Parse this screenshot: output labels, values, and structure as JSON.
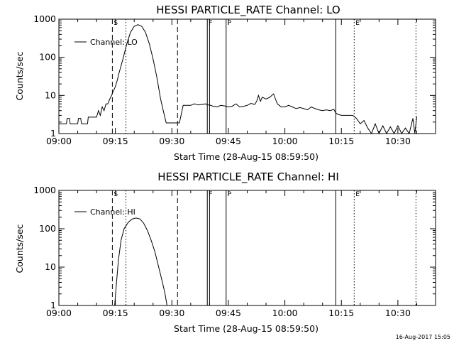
{
  "footer": {
    "timestamp": "16-Aug-2017 15:05"
  },
  "chart_data": [
    {
      "type": "line",
      "title": "HESSI PARTICLE_RATE Channel: LO",
      "xlabel": "Start Time (28-Aug-15 08:59:50)",
      "ylabel": "Counts/sec",
      "log_y": true,
      "ylim": [
        1,
        1000
      ],
      "xlim_minutes": [
        0,
        100
      ],
      "x_ticks": [
        "09:00",
        "09:15",
        "09:30",
        "09:45",
        "10:00",
        "10:15",
        "10:30"
      ],
      "y_ticks": [
        "1",
        "10",
        "100",
        "1000"
      ],
      "legend": {
        "label": "Channel: LO",
        "placement": "top-left"
      },
      "markers": [
        {
          "label": "S",
          "minute": 14.2,
          "style": "dashed"
        },
        {
          "label": "",
          "minute": 17.8,
          "style": "dotted"
        },
        {
          "label": "",
          "minute": 31.5,
          "style": "dashed"
        },
        {
          "label": "F",
          "minute": 39.4,
          "style": "solid"
        },
        {
          "label": "",
          "minute": 40.0,
          "style": "solid"
        },
        {
          "label": "P",
          "minute": 44.4,
          "style": "solid"
        },
        {
          "label": "",
          "minute": 73.5,
          "style": "solid"
        },
        {
          "label": "E",
          "minute": 78.4,
          "style": "dotted"
        },
        {
          "label": "",
          "minute": 94.8,
          "style": "dotted"
        }
      ],
      "series": [
        {
          "name": "Channel: LO",
          "points": [
            [
              0,
              1.8
            ],
            [
              2,
              1.8
            ],
            [
              2.2,
              2.5
            ],
            [
              2.8,
              2.5
            ],
            [
              3,
              1.8
            ],
            [
              5,
              1.8
            ],
            [
              5.2,
              2.5
            ],
            [
              5.8,
              2.5
            ],
            [
              6,
              1.8
            ],
            [
              7.6,
              1.8
            ],
            [
              7.8,
              2.7
            ],
            [
              10,
              2.7
            ],
            [
              10.5,
              4
            ],
            [
              11,
              3
            ],
            [
              11.5,
              5
            ],
            [
              12,
              4
            ],
            [
              12.5,
              6
            ],
            [
              13,
              6
            ],
            [
              13.5,
              8
            ],
            [
              14,
              10
            ],
            [
              14.3,
              12
            ],
            [
              15,
              17
            ],
            [
              15.5,
              25
            ],
            [
              16,
              40
            ],
            [
              17,
              90
            ],
            [
              18,
              220
            ],
            [
              19,
              450
            ],
            [
              20,
              650
            ],
            [
              21,
              720
            ],
            [
              22,
              650
            ],
            [
              23,
              450
            ],
            [
              24,
              230
            ],
            [
              25,
              90
            ],
            [
              26,
              30
            ],
            [
              27,
              8
            ],
            [
              28,
              3
            ],
            [
              28.5,
              1.9
            ],
            [
              30,
              1.9
            ],
            [
              31,
              1.9
            ],
            [
              31.5,
              1.9
            ],
            [
              32,
              1.9
            ],
            [
              33,
              5.5
            ],
            [
              35,
              5.5
            ],
            [
              36,
              6
            ],
            [
              37,
              5.6
            ],
            [
              38,
              5.8
            ],
            [
              39,
              6
            ],
            [
              39.4,
              5.6
            ],
            [
              40,
              5.6
            ],
            [
              41,
              5.2
            ],
            [
              42,
              5
            ],
            [
              43,
              5.5
            ],
            [
              44,
              5.3
            ],
            [
              45,
              5
            ],
            [
              46,
              5.2
            ],
            [
              47,
              6
            ],
            [
              48,
              5
            ],
            [
              49,
              5.2
            ],
            [
              50,
              5.5
            ],
            [
              51,
              6.2
            ],
            [
              52,
              5.8
            ],
            [
              52.5,
              7
            ],
            [
              53,
              10
            ],
            [
              53.5,
              7
            ],
            [
              54,
              9
            ],
            [
              55,
              8
            ],
            [
              56,
              9
            ],
            [
              57,
              11
            ],
            [
              57.5,
              8
            ],
            [
              58,
              6
            ],
            [
              59,
              5
            ],
            [
              60,
              5
            ],
            [
              61,
              5.5
            ],
            [
              62,
              5
            ],
            [
              63,
              4.5
            ],
            [
              64,
              4.8
            ],
            [
              65,
              4.5
            ],
            [
              66,
              4.2
            ],
            [
              67,
              5
            ],
            [
              68,
              4.5
            ],
            [
              69,
              4.2
            ],
            [
              70,
              4
            ],
            [
              71,
              4.2
            ],
            [
              72,
              4
            ],
            [
              73,
              4.3
            ],
            [
              73.5,
              3.5
            ],
            [
              74,
              3.2
            ],
            [
              75,
              3
            ],
            [
              76,
              3
            ],
            [
              77,
              3
            ],
            [
              78,
              3
            ],
            [
              79,
              2.5
            ],
            [
              80,
              1.8
            ],
            [
              81,
              2.2
            ],
            [
              82,
              1.4
            ],
            [
              83,
              1
            ],
            [
              84,
              1.8
            ],
            [
              85,
              1
            ],
            [
              86,
              1.6
            ],
            [
              87,
              1
            ],
            [
              88,
              1.5
            ],
            [
              89,
              1
            ],
            [
              90,
              1.6
            ],
            [
              91,
              1
            ],
            [
              92,
              1.4
            ],
            [
              93,
              1
            ],
            [
              94,
              2.5
            ],
            [
              94.5,
              1
            ],
            [
              95,
              2.8
            ]
          ]
        }
      ]
    },
    {
      "type": "line",
      "title": "HESSI PARTICLE_RATE Channel: HI",
      "xlabel": "Start Time (28-Aug-15 08:59:50)",
      "ylabel": "Counts/sec",
      "log_y": true,
      "ylim": [
        1,
        1000
      ],
      "xlim_minutes": [
        0,
        100
      ],
      "x_ticks": [
        "09:00",
        "09:15",
        "09:30",
        "09:45",
        "10:00",
        "10:15",
        "10:30"
      ],
      "y_ticks": [
        "1",
        "10",
        "100",
        "1000"
      ],
      "legend": {
        "label": "Channel: HI",
        "placement": "top-left"
      },
      "markers": [
        {
          "label": "S",
          "minute": 14.2,
          "style": "dashed"
        },
        {
          "label": "",
          "minute": 17.8,
          "style": "dotted"
        },
        {
          "label": "",
          "minute": 31.5,
          "style": "dashed"
        },
        {
          "label": "F",
          "minute": 39.4,
          "style": "solid"
        },
        {
          "label": "",
          "minute": 40.0,
          "style": "solid"
        },
        {
          "label": "P",
          "minute": 44.4,
          "style": "solid"
        },
        {
          "label": "",
          "minute": 73.5,
          "style": "solid"
        },
        {
          "label": "E",
          "minute": 78.4,
          "style": "dotted"
        },
        {
          "label": "",
          "minute": 94.8,
          "style": "dotted"
        }
      ],
      "series": [
        {
          "name": "Channel: HI",
          "points": [
            [
              14.8,
              1
            ],
            [
              15.2,
              3
            ],
            [
              15.8,
              15
            ],
            [
              16.5,
              50
            ],
            [
              17.3,
              100
            ],
            [
              18.5,
              150
            ],
            [
              19.5,
              180
            ],
            [
              20.5,
              190
            ],
            [
              21.5,
              180
            ],
            [
              22.5,
              140
            ],
            [
              23.5,
              90
            ],
            [
              24.5,
              50
            ],
            [
              25.5,
              25
            ],
            [
              26.5,
              10
            ],
            [
              27.5,
              4
            ],
            [
              28.2,
              2
            ],
            [
              28.7,
              1
            ]
          ]
        }
      ]
    }
  ]
}
